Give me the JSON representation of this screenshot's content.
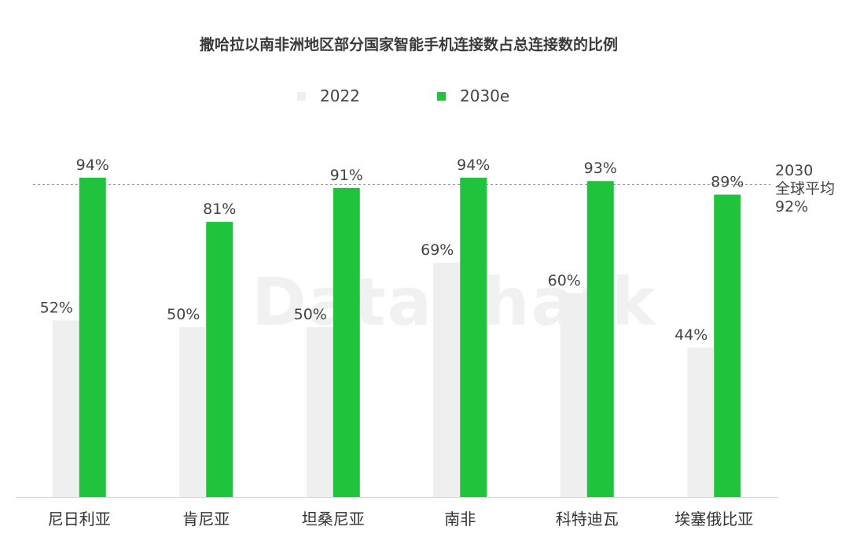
{
  "chart_data": {
    "type": "bar",
    "title": "撒哈拉以南非洲地区部分国家智能手机连接数占总连接数的比例",
    "categories": [
      "尼日利亚",
      "肯尼亚",
      "坦桑尼亚",
      "南非",
      "科特迪瓦",
      "埃塞俄比亚"
    ],
    "series": [
      {
        "name": "2022",
        "color": "#efefef",
        "values": [
          52,
          50,
          50,
          69,
          60,
          44
        ],
        "labels": [
          "52%",
          "50%",
          "50%",
          "69%",
          "60%",
          "44%"
        ]
      },
      {
        "name": "2030e",
        "color": "#1fc43c",
        "values": [
          94,
          81,
          91,
          94,
          93,
          89
        ],
        "labels": [
          "94%",
          "81%",
          "91%",
          "94%",
          "93%",
          "89%"
        ]
      }
    ],
    "ylim": [
      0,
      100
    ],
    "grid": false,
    "legend_position": "top-center",
    "reference_line": {
      "value": 92,
      "label_lines": [
        "2030",
        "全球平均",
        "92%"
      ]
    }
  },
  "watermark": "DataShark"
}
